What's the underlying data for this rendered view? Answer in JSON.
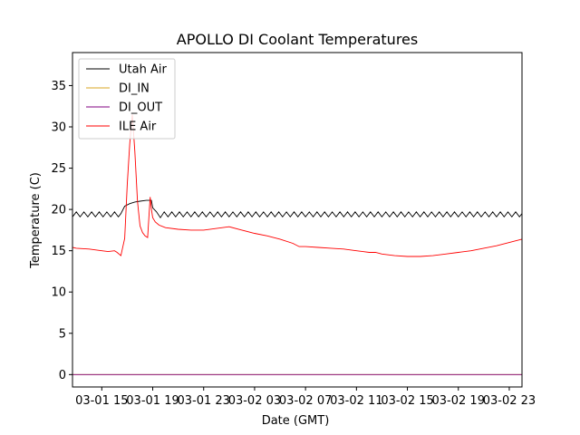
{
  "chart_data": {
    "type": "line",
    "title": "APOLLO DI Coolant Temperatures",
    "xlabel": "Date (GMT)",
    "ylabel": "Temperature (C)",
    "xlim": [
      12.7,
      48.0
    ],
    "ylim": [
      -1.5,
      39.0
    ],
    "yticks": [
      0,
      5,
      10,
      15,
      20,
      25,
      30,
      35
    ],
    "xticks": [
      {
        "value": 15,
        "label": "03-01 15"
      },
      {
        "value": 19,
        "label": "03-01 19"
      },
      {
        "value": 23,
        "label": "03-01 23"
      },
      {
        "value": 27,
        "label": "03-02 03"
      },
      {
        "value": 31,
        "label": "03-02 07"
      },
      {
        "value": 35,
        "label": "03-02 11"
      },
      {
        "value": 39,
        "label": "03-02 15"
      },
      {
        "value": 43,
        "label": "03-02 19"
      },
      {
        "value": 47,
        "label": "03-02 23"
      }
    ],
    "legend_position": "top-left",
    "series": [
      {
        "name": "Utah Air",
        "color": "#000000",
        "x": [
          12.7,
          13.0,
          13.3,
          13.6,
          13.9,
          14.2,
          14.5,
          14.8,
          15.1,
          15.4,
          15.7,
          16.0,
          16.3,
          16.5,
          16.8,
          17.2,
          17.6,
          18.0,
          18.5,
          18.9,
          19.0,
          19.3,
          19.6,
          19.9,
          20.2,
          20.5,
          20.8,
          21.1,
          21.4,
          21.7,
          22.0,
          22.3,
          22.6,
          22.9,
          23.2,
          23.5,
          23.8,
          24.1,
          24.4,
          24.7,
          25.0,
          25.3,
          25.6,
          25.9,
          26.2,
          26.5,
          26.8,
          27.1,
          27.4,
          27.7,
          28.0,
          28.3,
          28.6,
          28.9,
          29.2,
          29.5,
          29.8,
          30.1,
          30.4,
          30.7,
          31.0,
          31.3,
          31.6,
          31.9,
          32.2,
          32.5,
          32.8,
          33.1,
          33.4,
          33.7,
          34.0,
          34.3,
          34.6,
          34.9,
          35.2,
          35.5,
          35.8,
          36.1,
          36.4,
          36.7,
          37.0,
          37.3,
          37.6,
          37.9,
          38.2,
          38.5,
          38.8,
          39.1,
          39.4,
          39.7,
          40.0,
          40.3,
          40.6,
          40.9,
          41.2,
          41.5,
          41.8,
          42.1,
          42.4,
          42.7,
          43.0,
          43.3,
          43.6,
          43.9,
          44.2,
          44.5,
          44.8,
          45.1,
          45.4,
          45.7,
          46.0,
          46.3,
          46.6,
          46.9,
          47.2,
          47.5,
          47.8,
          48.0
        ],
        "y": [
          19.1,
          19.7,
          19.1,
          19.7,
          19.1,
          19.7,
          19.1,
          19.7,
          19.1,
          19.7,
          19.1,
          19.7,
          19.1,
          19.5,
          20.4,
          20.7,
          20.9,
          21.0,
          21.1,
          21.1,
          20.2,
          19.7,
          19.0,
          19.7,
          19.1,
          19.7,
          19.1,
          19.7,
          19.1,
          19.7,
          19.1,
          19.7,
          19.1,
          19.7,
          19.1,
          19.7,
          19.1,
          19.7,
          19.1,
          19.7,
          19.1,
          19.7,
          19.1,
          19.7,
          19.1,
          19.7,
          19.1,
          19.7,
          19.1,
          19.7,
          19.1,
          19.7,
          19.1,
          19.7,
          19.1,
          19.7,
          19.1,
          19.7,
          19.1,
          19.7,
          19.1,
          19.7,
          19.1,
          19.7,
          19.1,
          19.7,
          19.1,
          19.7,
          19.1,
          19.7,
          19.1,
          19.7,
          19.1,
          19.7,
          19.1,
          19.7,
          19.1,
          19.7,
          19.1,
          19.7,
          19.1,
          19.7,
          19.1,
          19.7,
          19.1,
          19.7,
          19.1,
          19.7,
          19.1,
          19.7,
          19.1,
          19.7,
          19.1,
          19.7,
          19.1,
          19.7,
          19.1,
          19.7,
          19.1,
          19.7,
          19.1,
          19.7,
          19.1,
          19.7,
          19.1,
          19.7,
          19.1,
          19.7,
          19.1,
          19.7,
          19.1,
          19.7,
          19.1,
          19.7,
          19.1,
          19.7,
          19.1,
          19.5
        ]
      },
      {
        "name": "DI_IN",
        "color": "#daa520",
        "x": [
          12.7,
          48.0
        ],
        "y": [
          0.0,
          0.0
        ]
      },
      {
        "name": "DI_OUT",
        "color": "#800080",
        "x": [
          12.7,
          48.0
        ],
        "y": [
          0.0,
          0.0
        ]
      },
      {
        "name": "ILE Air",
        "color": "#ff0000",
        "x": [
          12.7,
          13.0,
          14.0,
          15.0,
          15.5,
          16.0,
          16.2,
          16.5,
          16.8,
          17.0,
          17.2,
          17.4,
          17.6,
          17.8,
          18.0,
          18.2,
          18.4,
          18.6,
          18.8,
          18.9,
          19.0,
          19.2,
          19.5,
          20.0,
          21.0,
          22.0,
          23.0,
          24.0,
          25.0,
          26.0,
          27.0,
          28.0,
          29.0,
          30.0,
          30.5,
          31.0,
          32.0,
          33.0,
          34.0,
          35.0,
          35.5,
          36.0,
          36.5,
          37.0,
          38.0,
          39.0,
          40.0,
          41.0,
          42.0,
          43.0,
          44.0,
          45.0,
          46.0,
          47.0,
          48.0
        ],
        "y": [
          15.4,
          15.3,
          15.2,
          15.0,
          14.9,
          15.0,
          14.8,
          14.4,
          16.5,
          23.0,
          28.0,
          31.5,
          27.0,
          21.0,
          18.0,
          17.2,
          16.8,
          16.6,
          21.5,
          20.0,
          19.0,
          18.5,
          18.1,
          17.8,
          17.6,
          17.5,
          17.5,
          17.7,
          17.9,
          17.5,
          17.1,
          16.8,
          16.4,
          15.9,
          15.5,
          15.5,
          15.4,
          15.3,
          15.2,
          15.0,
          14.9,
          14.8,
          14.8,
          14.6,
          14.4,
          14.3,
          14.3,
          14.4,
          14.6,
          14.8,
          15.0,
          15.3,
          15.6,
          16.0,
          16.4
        ]
      }
    ]
  }
}
